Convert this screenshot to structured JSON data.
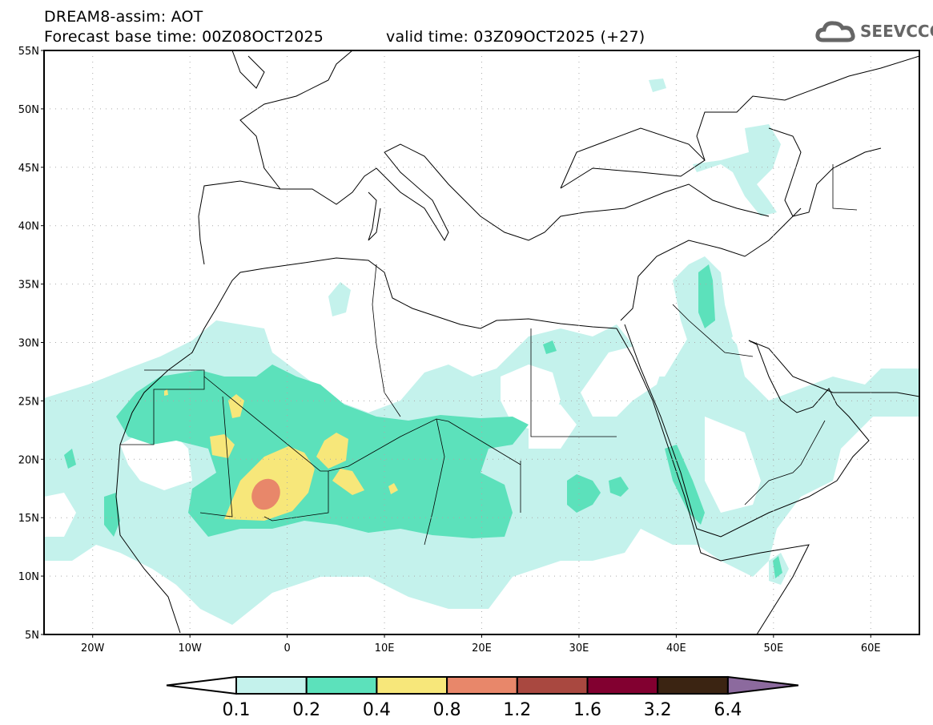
{
  "header": {
    "title": "DREAM8-assim: AOT",
    "base_time": "Forecast base time: 00Z08OCT2025",
    "valid_time": "valid time: 03Z09OCT2025 (+27)"
  },
  "logo": {
    "text": "SEEVCCC",
    "icon": "cloud-icon"
  },
  "map": {
    "lon_range": [
      -25,
      65
    ],
    "lat_range": [
      5,
      55
    ],
    "lat_ticks": [
      "55N",
      "50N",
      "45N",
      "40N",
      "35N",
      "30N",
      "25N",
      "20N",
      "15N",
      "10N",
      "5N"
    ],
    "lon_ticks": [
      "20W",
      "10W",
      "0",
      "10E",
      "20E",
      "30E",
      "40E",
      "50E",
      "60E"
    ]
  },
  "colorbar": {
    "labels": [
      "0.1",
      "0.2",
      "0.4",
      "0.8",
      "1.2",
      "1.6",
      "3.2",
      "6.4"
    ],
    "colors": [
      "#ffffff",
      "#c4f2ec",
      "#5ce1bb",
      "#f7e77a",
      "#e8876a",
      "#a94840",
      "#820030",
      "#3b2412",
      "#8c6a9e"
    ]
  }
}
